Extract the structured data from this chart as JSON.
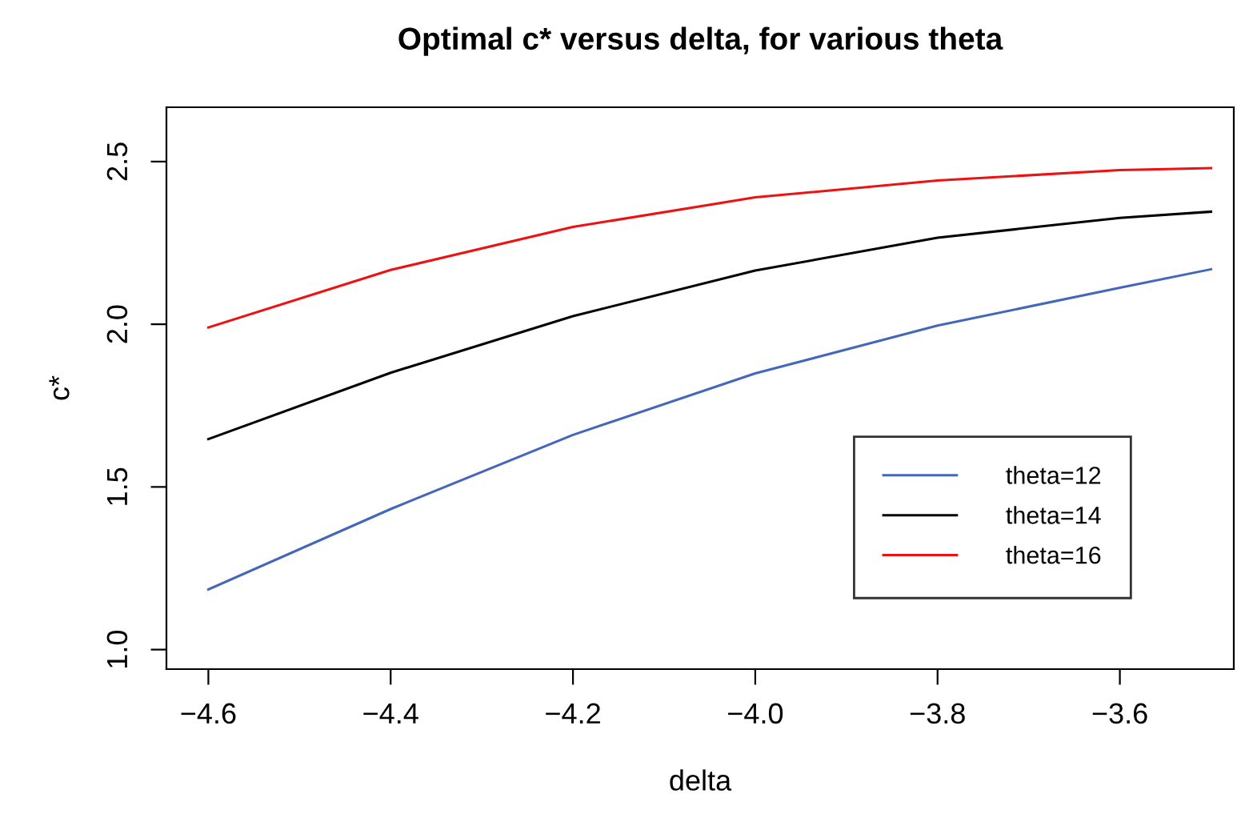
{
  "chart_data": {
    "type": "line",
    "title": "Optimal c* versus delta, for various theta",
    "xlabel": "delta",
    "ylabel": "c*",
    "x": [
      -4.6,
      -4.4,
      -4.2,
      -4.0,
      -3.8,
      -3.6,
      -3.5
    ],
    "series": [
      {
        "name": "theta=12",
        "color": "#4466bb",
        "values": [
          1.185,
          1.432,
          1.66,
          1.849,
          1.996,
          2.112,
          2.169
        ]
      },
      {
        "name": "theta=14",
        "color": "#000000",
        "values": [
          1.647,
          1.851,
          2.025,
          2.165,
          2.266,
          2.327,
          2.346
        ]
      },
      {
        "name": "theta=16",
        "color": "#ee1111",
        "values": [
          1.99,
          2.167,
          2.299,
          2.39,
          2.442,
          2.474,
          2.48
        ]
      }
    ],
    "xlim": [
      -4.646,
      -3.475
    ],
    "ylim": [
      0.94,
      2.667
    ],
    "xticks": [
      -4.6,
      -4.4,
      -4.2,
      {
        "value": -4.0,
        "label": "−4.0"
      },
      -3.8,
      -3.6
    ],
    "yticks": [
      {
        "value": 1.0,
        "label": "1.0"
      },
      1.5,
      {
        "value": 2.0,
        "label": "2.0"
      },
      2.5
    ],
    "grid": false,
    "legend": "right",
    "marker": "none",
    "line_style": "solid"
  }
}
